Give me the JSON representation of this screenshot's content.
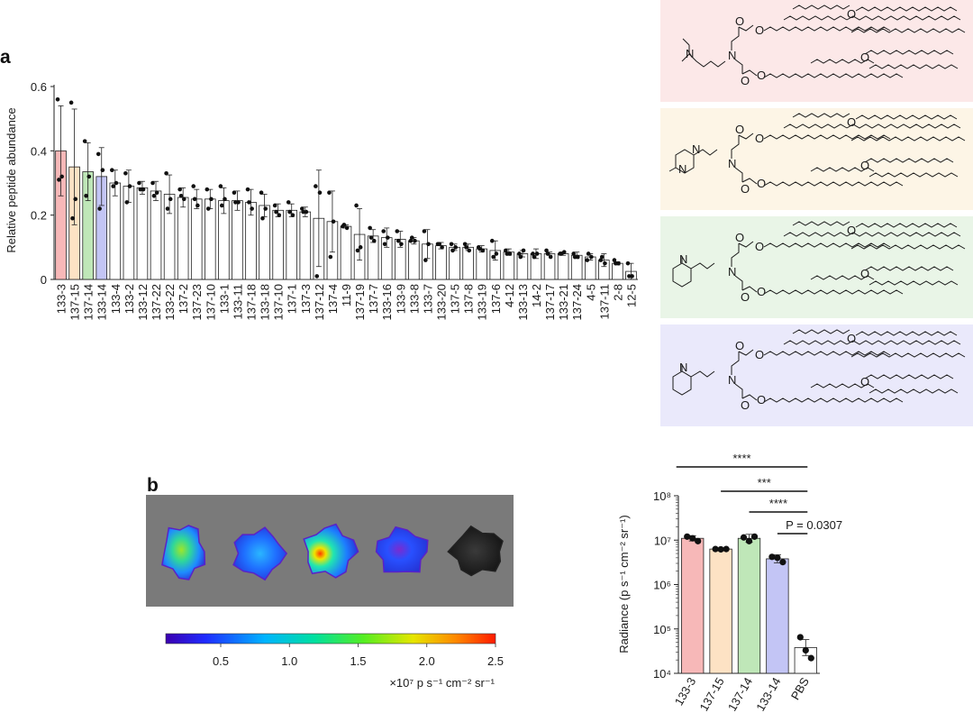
{
  "panel_a": {
    "label": "a",
    "chart_data": {
      "type": "bar",
      "ylabel": "Relative peptide abundance",
      "ylim": [
        0,
        0.6
      ],
      "yticks": [
        "0",
        "0.2",
        "0.4",
        "0.6"
      ],
      "categories": [
        "133-3",
        "137-15",
        "137-14",
        "133-14",
        "133-4",
        "133-2",
        "133-12",
        "137-22",
        "133-22",
        "137-2",
        "137-23",
        "137-10",
        "133-1",
        "133-11",
        "137-18",
        "133-18",
        "137-10",
        "137-1",
        "137-3",
        "137-12",
        "137-4",
        "11-9",
        "137-19",
        "137-7",
        "133-16",
        "133-9",
        "133-8",
        "133-7",
        "133-20",
        "137-5",
        "137-8",
        "133-19",
        "137-6",
        "4-12",
        "133-13",
        "14-2",
        "137-17",
        "133-21",
        "137-24",
        "4-5",
        "137-11",
        "2-8",
        "12-5"
      ],
      "values": [
        0.4,
        0.35,
        0.335,
        0.32,
        0.3,
        0.29,
        0.285,
        0.275,
        0.265,
        0.255,
        0.25,
        0.25,
        0.245,
        0.245,
        0.24,
        0.23,
        0.215,
        0.215,
        0.21,
        0.19,
        0.18,
        0.165,
        0.14,
        0.135,
        0.13,
        0.125,
        0.12,
        0.11,
        0.105,
        0.1,
        0.1,
        0.095,
        0.09,
        0.085,
        0.08,
        0.08,
        0.08,
        0.08,
        0.075,
        0.07,
        0.06,
        0.05,
        0.025
      ],
      "errors": [
        0.14,
        0.18,
        0.09,
        0.09,
        0.04,
        0.05,
        0.02,
        0.03,
        0.06,
        0.03,
        0.03,
        0.03,
        0.04,
        0.03,
        0.04,
        0.035,
        0.02,
        0.02,
        0.015,
        0.15,
        0.095,
        0.005,
        0.08,
        0.02,
        0.03,
        0.025,
        0.01,
        0.045,
        0.01,
        0.01,
        0.01,
        0.01,
        0.03,
        0.01,
        0.01,
        0.015,
        0.005,
        0.005,
        0.01,
        0.01,
        0.02,
        0.005,
        0.025
      ],
      "points": [
        [
          0.56,
          0.32,
          0.31
        ],
        [
          0.55,
          0.25,
          0.19
        ],
        [
          0.43,
          0.32,
          0.26
        ],
        [
          0.39,
          0.34,
          0.22
        ],
        [
          0.34,
          0.3,
          0.29
        ],
        [
          0.33,
          0.29,
          0.24
        ],
        [
          0.3,
          0.28,
          0.28
        ],
        [
          0.3,
          0.27,
          0.26
        ],
        [
          0.33,
          0.25,
          0.22
        ],
        [
          0.28,
          0.25,
          0.26
        ],
        [
          0.29,
          0.23,
          0.25
        ],
        [
          0.28,
          0.25,
          0.22
        ],
        [
          0.29,
          0.25,
          0.23
        ],
        [
          0.27,
          0.24,
          0.24
        ],
        [
          0.28,
          0.22,
          0.24
        ],
        [
          0.27,
          0.22,
          0.19
        ],
        [
          0.23,
          0.2,
          0.21
        ],
        [
          0.24,
          0.2,
          0.21
        ],
        [
          0.22,
          0.21,
          0.21
        ],
        [
          0.29,
          0.27,
          0.01
        ],
        [
          0.27,
          0.18,
          0.07
        ],
        [
          0.165,
          0.16,
          0.17
        ],
        [
          0.23,
          0.1,
          0.09
        ],
        [
          0.16,
          0.12,
          0.13
        ],
        [
          0.15,
          0.13,
          0.11
        ],
        [
          0.15,
          0.11,
          0.12
        ],
        [
          0.12,
          0.12,
          0.13
        ],
        [
          0.15,
          0.11,
          0.06
        ],
        [
          0.11,
          0.1,
          0.11
        ],
        [
          0.11,
          0.1,
          0.09
        ],
        [
          0.11,
          0.09,
          0.1
        ],
        [
          0.1,
          0.09,
          0.095
        ],
        [
          0.12,
          0.08,
          0.07
        ],
        [
          0.09,
          0.08,
          0.08
        ],
        [
          0.08,
          0.09,
          0.07
        ],
        [
          0.08,
          0.08,
          0.07
        ],
        [
          0.09,
          0.07,
          0.08
        ],
        [
          0.08,
          0.085,
          0.08
        ],
        [
          0.08,
          0.07,
          0.07
        ],
        [
          0.06,
          0.07,
          0.08
        ],
        [
          0.06,
          0.05,
          0.07
        ],
        [
          0.06,
          0.05,
          0.05
        ],
        [
          0.05,
          0.01,
          0.01
        ]
      ],
      "highlight_colors": [
        "#f7b8b8",
        "#fde2c4",
        "#bfe7b8",
        "#c3c5f5"
      ]
    }
  },
  "structures": [
    {
      "color": "#fce8e8",
      "headgroup": "diethylamine"
    },
    {
      "color": "#fdf5e6",
      "headgroup": "methylpiperazine"
    },
    {
      "color": "#e9f5e7",
      "headgroup": "methylpiperidine"
    },
    {
      "color": "#eae9fb",
      "headgroup": "methylpiperidine"
    }
  ],
  "panel_b": {
    "label": "b",
    "colorbar": {
      "ticks": [
        "0.5",
        "1.0",
        "1.5",
        "2.0",
        "2.5"
      ],
      "min": 0.1,
      "max": 2.5,
      "unit": "×10⁷ p s⁻¹ cm⁻² sr⁻¹"
    },
    "images": [
      "133-3",
      "137-15",
      "137-14",
      "133-14",
      "PBS"
    ],
    "chart_data": {
      "type": "bar",
      "scale": "log",
      "ylabel": "Radiance (p s⁻¹ cm⁻² sr⁻¹)",
      "ylim": [
        10000,
        100000000
      ],
      "yticks": [
        "10⁴",
        "10⁵",
        "10⁶",
        "10⁷",
        "10⁸"
      ],
      "categories": [
        "133-3",
        "137-15",
        "137-14",
        "133-14",
        "PBS"
      ],
      "values": [
        11000000,
        6300000,
        11000000,
        3800000,
        38000
      ],
      "errors_log": [
        0.06,
        0.02,
        0.09,
        0.09,
        0.18
      ],
      "points": [
        [
          12000000,
          11000000,
          9500000
        ],
        [
          6300000,
          6200000,
          6300000
        ],
        [
          11500000,
          9500000,
          12000000
        ],
        [
          4200000,
          4000000,
          3200000
        ],
        [
          65000,
          33000,
          22000
        ]
      ],
      "colors": [
        "#f7b8b8",
        "#fde2c4",
        "#bfe7b8",
        "#c3c5f5",
        "#ffffff"
      ],
      "significance": [
        {
          "label": "****",
          "from": 0,
          "to": 4
        },
        {
          "label": "***",
          "from": 1,
          "to": 4
        },
        {
          "label": "****",
          "from": 2,
          "to": 4
        },
        {
          "label": "P = 0.0307",
          "from": 3,
          "to": 4
        }
      ]
    }
  }
}
